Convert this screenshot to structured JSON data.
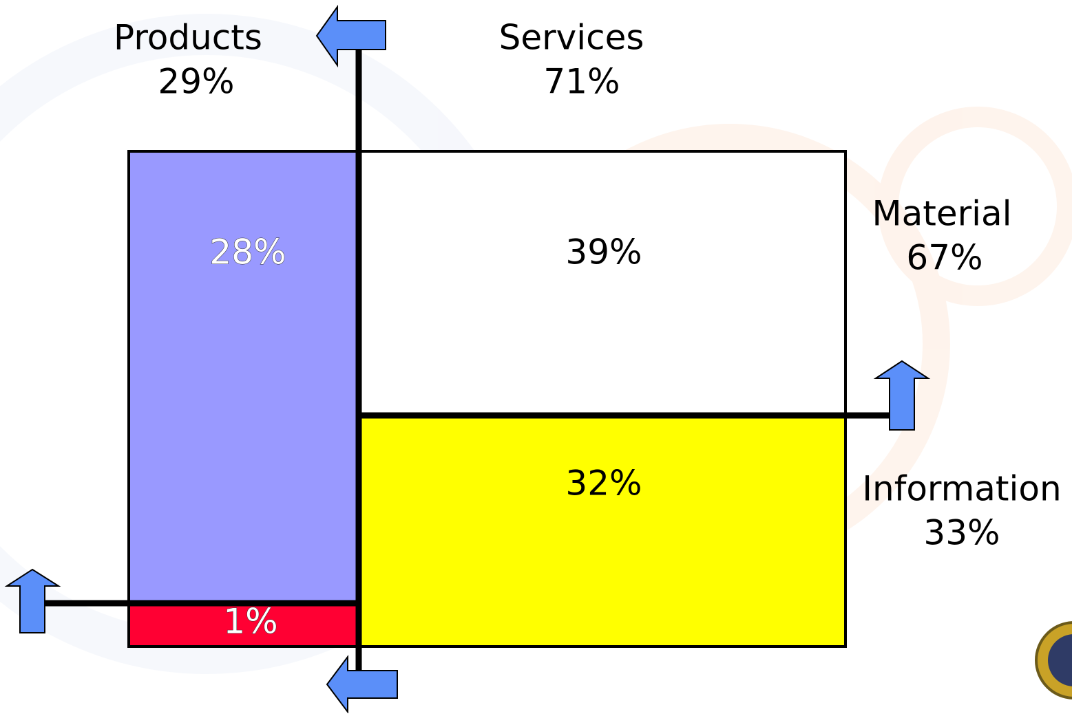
{
  "columns": [
    {
      "label": "Products",
      "share": "29%"
    },
    {
      "label": "Services",
      "share": "71%"
    }
  ],
  "rows": [
    {
      "label": "Material",
      "share": "67%"
    },
    {
      "label": "Information",
      "share": "33%"
    }
  ],
  "cells": [
    "28%",
    "39%",
    "32%",
    "1%"
  ]
}
